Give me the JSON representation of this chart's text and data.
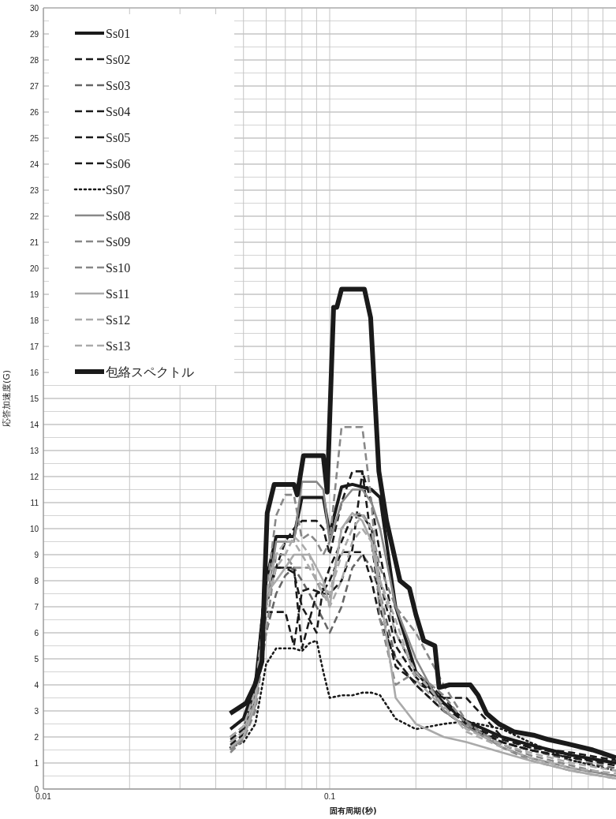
{
  "chart_data": {
    "type": "line",
    "xlabel": "固有周期(秒)",
    "ylabel": "応答加速度(G)",
    "log": "x",
    "xlim": [
      0.01,
      1
    ],
    "xticks": [
      0.01,
      0.1
    ],
    "ylim": [
      0,
      30
    ],
    "yticks": [
      0,
      1,
      2,
      3,
      4,
      5,
      6,
      7,
      8,
      9,
      10,
      11,
      12,
      13,
      14,
      15,
      16,
      17,
      18,
      19,
      20,
      21,
      22,
      23,
      24,
      25,
      26,
      27,
      28,
      29,
      30
    ],
    "grid": true,
    "legend": "top left",
    "marker": "none",
    "x": [
      0.045,
      0.05,
      0.055,
      0.06,
      0.065,
      0.07,
      0.075,
      0.08,
      0.085,
      0.09,
      0.095,
      0.1,
      0.11,
      0.12,
      0.13,
      0.14,
      0.15,
      0.17,
      0.2,
      0.25,
      0.3,
      0.4,
      0.5,
      0.7,
      1.0
    ],
    "series": [
      {
        "name": "Ss01",
        "color": "#1a1a1a",
        "line_style": "solid",
        "values": [
          2.3,
          2.7,
          4,
          8,
          9.7,
          9.7,
          9.7,
          11.2,
          11.2,
          11.2,
          11.2,
          9.8,
          11.6,
          11.7,
          11.6,
          11.5,
          11.2,
          7,
          4.5,
          3.3,
          2.6,
          2.0,
          1.7,
          1.3,
          1.0
        ]
      },
      {
        "name": "Ss02",
        "color": "#1a1a1a",
        "line_style": "dashed",
        "values": [
          2.0,
          2.4,
          4,
          7.5,
          8.5,
          9.5,
          10,
          10.3,
          10.3,
          10.3,
          10,
          9,
          11,
          12.2,
          12.2,
          11,
          9,
          6,
          4.5,
          3.5,
          3.5,
          2,
          1.6,
          1.4,
          1.1
        ]
      },
      {
        "name": "Ss03",
        "color": "#666666",
        "line_style": "dashed",
        "values": [
          1.8,
          2.2,
          3.5,
          6,
          7.5,
          8.2,
          8.5,
          8,
          7.5,
          7,
          6.5,
          6,
          7,
          8.5,
          9,
          8.5,
          7.5,
          5,
          4,
          3,
          2.4,
          1.8,
          1.5,
          1.1,
          0.8
        ]
      },
      {
        "name": "Ss04",
        "color": "#1a1a1a",
        "line_style": "dashed",
        "values": [
          1.6,
          2,
          3.5,
          6.8,
          6.8,
          6.8,
          5.5,
          7.6,
          7.7,
          7.6,
          7.5,
          7.5,
          8,
          9.2,
          12.2,
          9.5,
          7,
          4.7,
          4.1,
          3.5,
          2.5,
          1.8,
          1.5,
          1.2,
          0.9
        ]
      },
      {
        "name": "Ss05",
        "color": "#1a1a1a",
        "line_style": "dashed",
        "values": [
          1.7,
          2.1,
          3.8,
          7,
          8.5,
          8.5,
          8.3,
          7,
          6.5,
          6,
          7.8,
          8.5,
          9.5,
          10.5,
          10.5,
          10,
          8,
          5.5,
          4.3,
          3.2,
          2.5,
          1.9,
          1.6,
          1.3,
          1.0
        ]
      },
      {
        "name": "Ss06",
        "color": "#1a1a1a",
        "line_style": "dashed",
        "values": [
          1.9,
          2.3,
          3.8,
          8.5,
          8.5,
          8.5,
          8.5,
          5.4,
          6.5,
          7.5,
          7.6,
          8,
          9.1,
          9.1,
          9.1,
          8,
          6.5,
          5,
          4,
          3,
          2.4,
          1.8,
          1.5,
          1.2,
          1.0
        ]
      },
      {
        "name": "Ss07",
        "color": "#1a1a1a",
        "line_style": "dotted",
        "values": [
          1.6,
          1.8,
          2.5,
          4.8,
          5.4,
          5.4,
          5.4,
          5.3,
          5.6,
          5.7,
          4.5,
          3.5,
          3.6,
          3.6,
          3.7,
          3.7,
          3.6,
          2.7,
          2.3,
          2.5,
          2.6,
          2.3,
          1.8,
          1.1,
          0.7
        ]
      },
      {
        "name": "Ss08",
        "color": "#888888",
        "line_style": "solid",
        "values": [
          1.5,
          2,
          3.2,
          7,
          9.5,
          9.5,
          9.5,
          11.8,
          11.8,
          11.8,
          11.5,
          9.5,
          11,
          11.5,
          11.5,
          11,
          10,
          7,
          5,
          3,
          2.4,
          1.6,
          1.2,
          0.8,
          0.5
        ]
      },
      {
        "name": "Ss09",
        "color": "#888888",
        "line_style": "dashed",
        "values": [
          1.4,
          1.9,
          3,
          6,
          9,
          9,
          8.5,
          8.5,
          8.5,
          8,
          7.4,
          7.3,
          10,
          10.5,
          10.6,
          10,
          8.5,
          7,
          6,
          4,
          2.6,
          1.6,
          1.1,
          0.7,
          0.4
        ]
      },
      {
        "name": "Ss10",
        "color": "#888888",
        "line_style": "dashed",
        "values": [
          1.5,
          2,
          3.5,
          7.5,
          10.5,
          11.3,
          11.3,
          9.6,
          9.8,
          9.5,
          9,
          9.5,
          13.9,
          13.9,
          13.9,
          11,
          6.5,
          4,
          4.5,
          3.6,
          2.5,
          1.7,
          1.3,
          0.9,
          0.5
        ]
      },
      {
        "name": "Ss11",
        "color": "#aaaaaa",
        "line_style": "solid",
        "values": [
          1.6,
          2,
          3.3,
          7.5,
          8,
          8.5,
          9,
          9,
          9,
          8.5,
          8,
          7,
          10,
          10.6,
          10.3,
          9.5,
          7.5,
          3.5,
          2.5,
          2,
          1.8,
          1.4,
          1.1,
          0.7,
          0.4
        ]
      },
      {
        "name": "Ss12",
        "color": "#aaaaaa",
        "line_style": "dashed",
        "values": [
          1.8,
          2.2,
          3.6,
          7,
          8.5,
          9,
          9.7,
          9.4,
          9,
          8,
          7.5,
          7,
          8,
          9.5,
          10,
          9.5,
          8,
          6,
          4.5,
          3.2,
          2.2,
          1.6,
          1.2,
          0.8,
          0.6
        ]
      },
      {
        "name": "Ss13",
        "color": "#aaaaaa",
        "line_style": "dashed",
        "values": [
          2.0,
          2.4,
          3.8,
          7.5,
          9,
          9.5,
          9.5,
          9,
          8.5,
          8,
          7.8,
          7.5,
          9,
          10,
          10.5,
          10,
          8,
          6.5,
          4.2,
          3.1,
          2.3,
          1.7,
          1.4,
          1.0,
          0.7
        ]
      },
      {
        "name": "包絡スペクトル",
        "color": "#1a1a1a",
        "line_style": "solid",
        "x": [
          0.0449,
          0.0511,
          0.0548,
          0.058,
          0.0591,
          0.0605,
          0.064,
          0.075,
          0.077,
          0.081,
          0.095,
          0.098,
          0.1032,
          0.1059,
          0.11,
          0.1322,
          0.139,
          0.1485,
          0.158,
          0.176,
          0.19,
          0.2,
          0.213,
          0.233,
          0.241,
          0.262,
          0.31,
          0.33,
          0.353,
          0.39,
          0.44,
          0.52,
          0.58,
          0.68,
          0.83,
          1.0
        ],
        "values": [
          2.9,
          3.3,
          4.0,
          4.9,
          7.6,
          10.6,
          11.7,
          11.7,
          11.3,
          12.8,
          12.8,
          11.4,
          18.5,
          18.5,
          19.2,
          19.2,
          18.1,
          12.2,
          10.3,
          8.0,
          7.7,
          6.7,
          5.7,
          5.5,
          3.9,
          4.0,
          4.0,
          3.6,
          2.9,
          2.5,
          2.2,
          2.06,
          1.9,
          1.73,
          1.5,
          1.2
        ]
      }
    ]
  }
}
